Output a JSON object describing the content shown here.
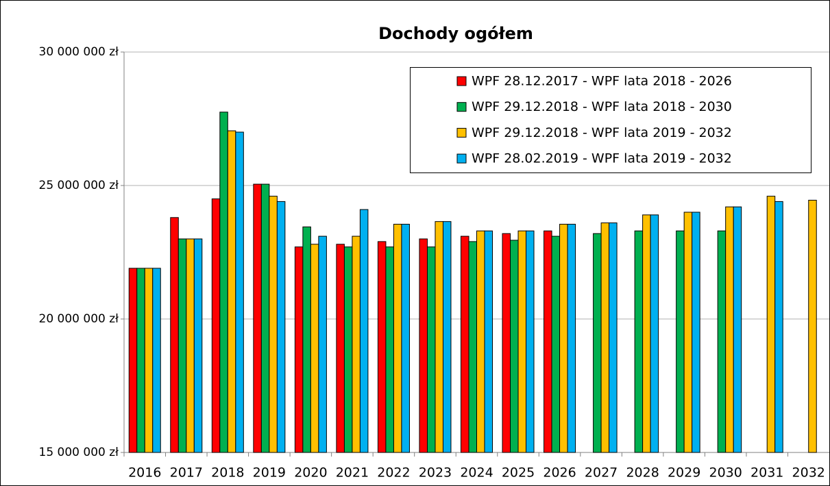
{
  "chart_data": {
    "type": "bar",
    "title": "Dochody ogółem",
    "categories": [
      "2016",
      "2017",
      "2018",
      "2019",
      "2020",
      "2021",
      "2022",
      "2023",
      "2024",
      "2025",
      "2026",
      "2027",
      "2028",
      "2029",
      "2030",
      "2031",
      "2032"
    ],
    "series": [
      {
        "name": "WPF 28.12.2017 - WPF lata 2018 - 2026",
        "color": "#ff0000",
        "values": [
          21900000,
          23800000,
          24500000,
          25050000,
          22700000,
          22800000,
          22900000,
          23000000,
          23100000,
          23200000,
          23300000,
          null,
          null,
          null,
          null,
          null,
          null
        ]
      },
      {
        "name": "WPF 29.12.2018 - WPF lata 2018 - 2030",
        "color": "#00b050",
        "values": [
          21900000,
          23000000,
          27750000,
          25050000,
          23450000,
          22700000,
          22700000,
          22700000,
          22900000,
          22950000,
          23100000,
          23200000,
          23300000,
          23300000,
          23300000,
          null,
          null
        ]
      },
      {
        "name": "WPF 29.12.2018 - WPF lata 2019 - 2032",
        "color": "#ffc000",
        "values": [
          21900000,
          23000000,
          27050000,
          24600000,
          22800000,
          23100000,
          23550000,
          23650000,
          23300000,
          23300000,
          23550000,
          23600000,
          23900000,
          24000000,
          24200000,
          24600000,
          24450000
        ]
      },
      {
        "name": "WPF 28.02.2019 - WPF lata 2019 - 2032",
        "color": "#00b0f0",
        "values": [
          21900000,
          23000000,
          27000000,
          24400000,
          23100000,
          24100000,
          23550000,
          23650000,
          23300000,
          23300000,
          23550000,
          23600000,
          23900000,
          24000000,
          24200000,
          24400000,
          null
        ]
      }
    ],
    "ylim": [
      15000000,
      30000000
    ],
    "yticks": [
      {
        "value": 15000000,
        "label": "15 000 000 zł"
      },
      {
        "value": 20000000,
        "label": "20 000 000 zł"
      },
      {
        "value": 25000000,
        "label": "25 000 000 zł"
      },
      {
        "value": 30000000,
        "label": "30 000 000 zł"
      }
    ],
    "grid": true
  }
}
